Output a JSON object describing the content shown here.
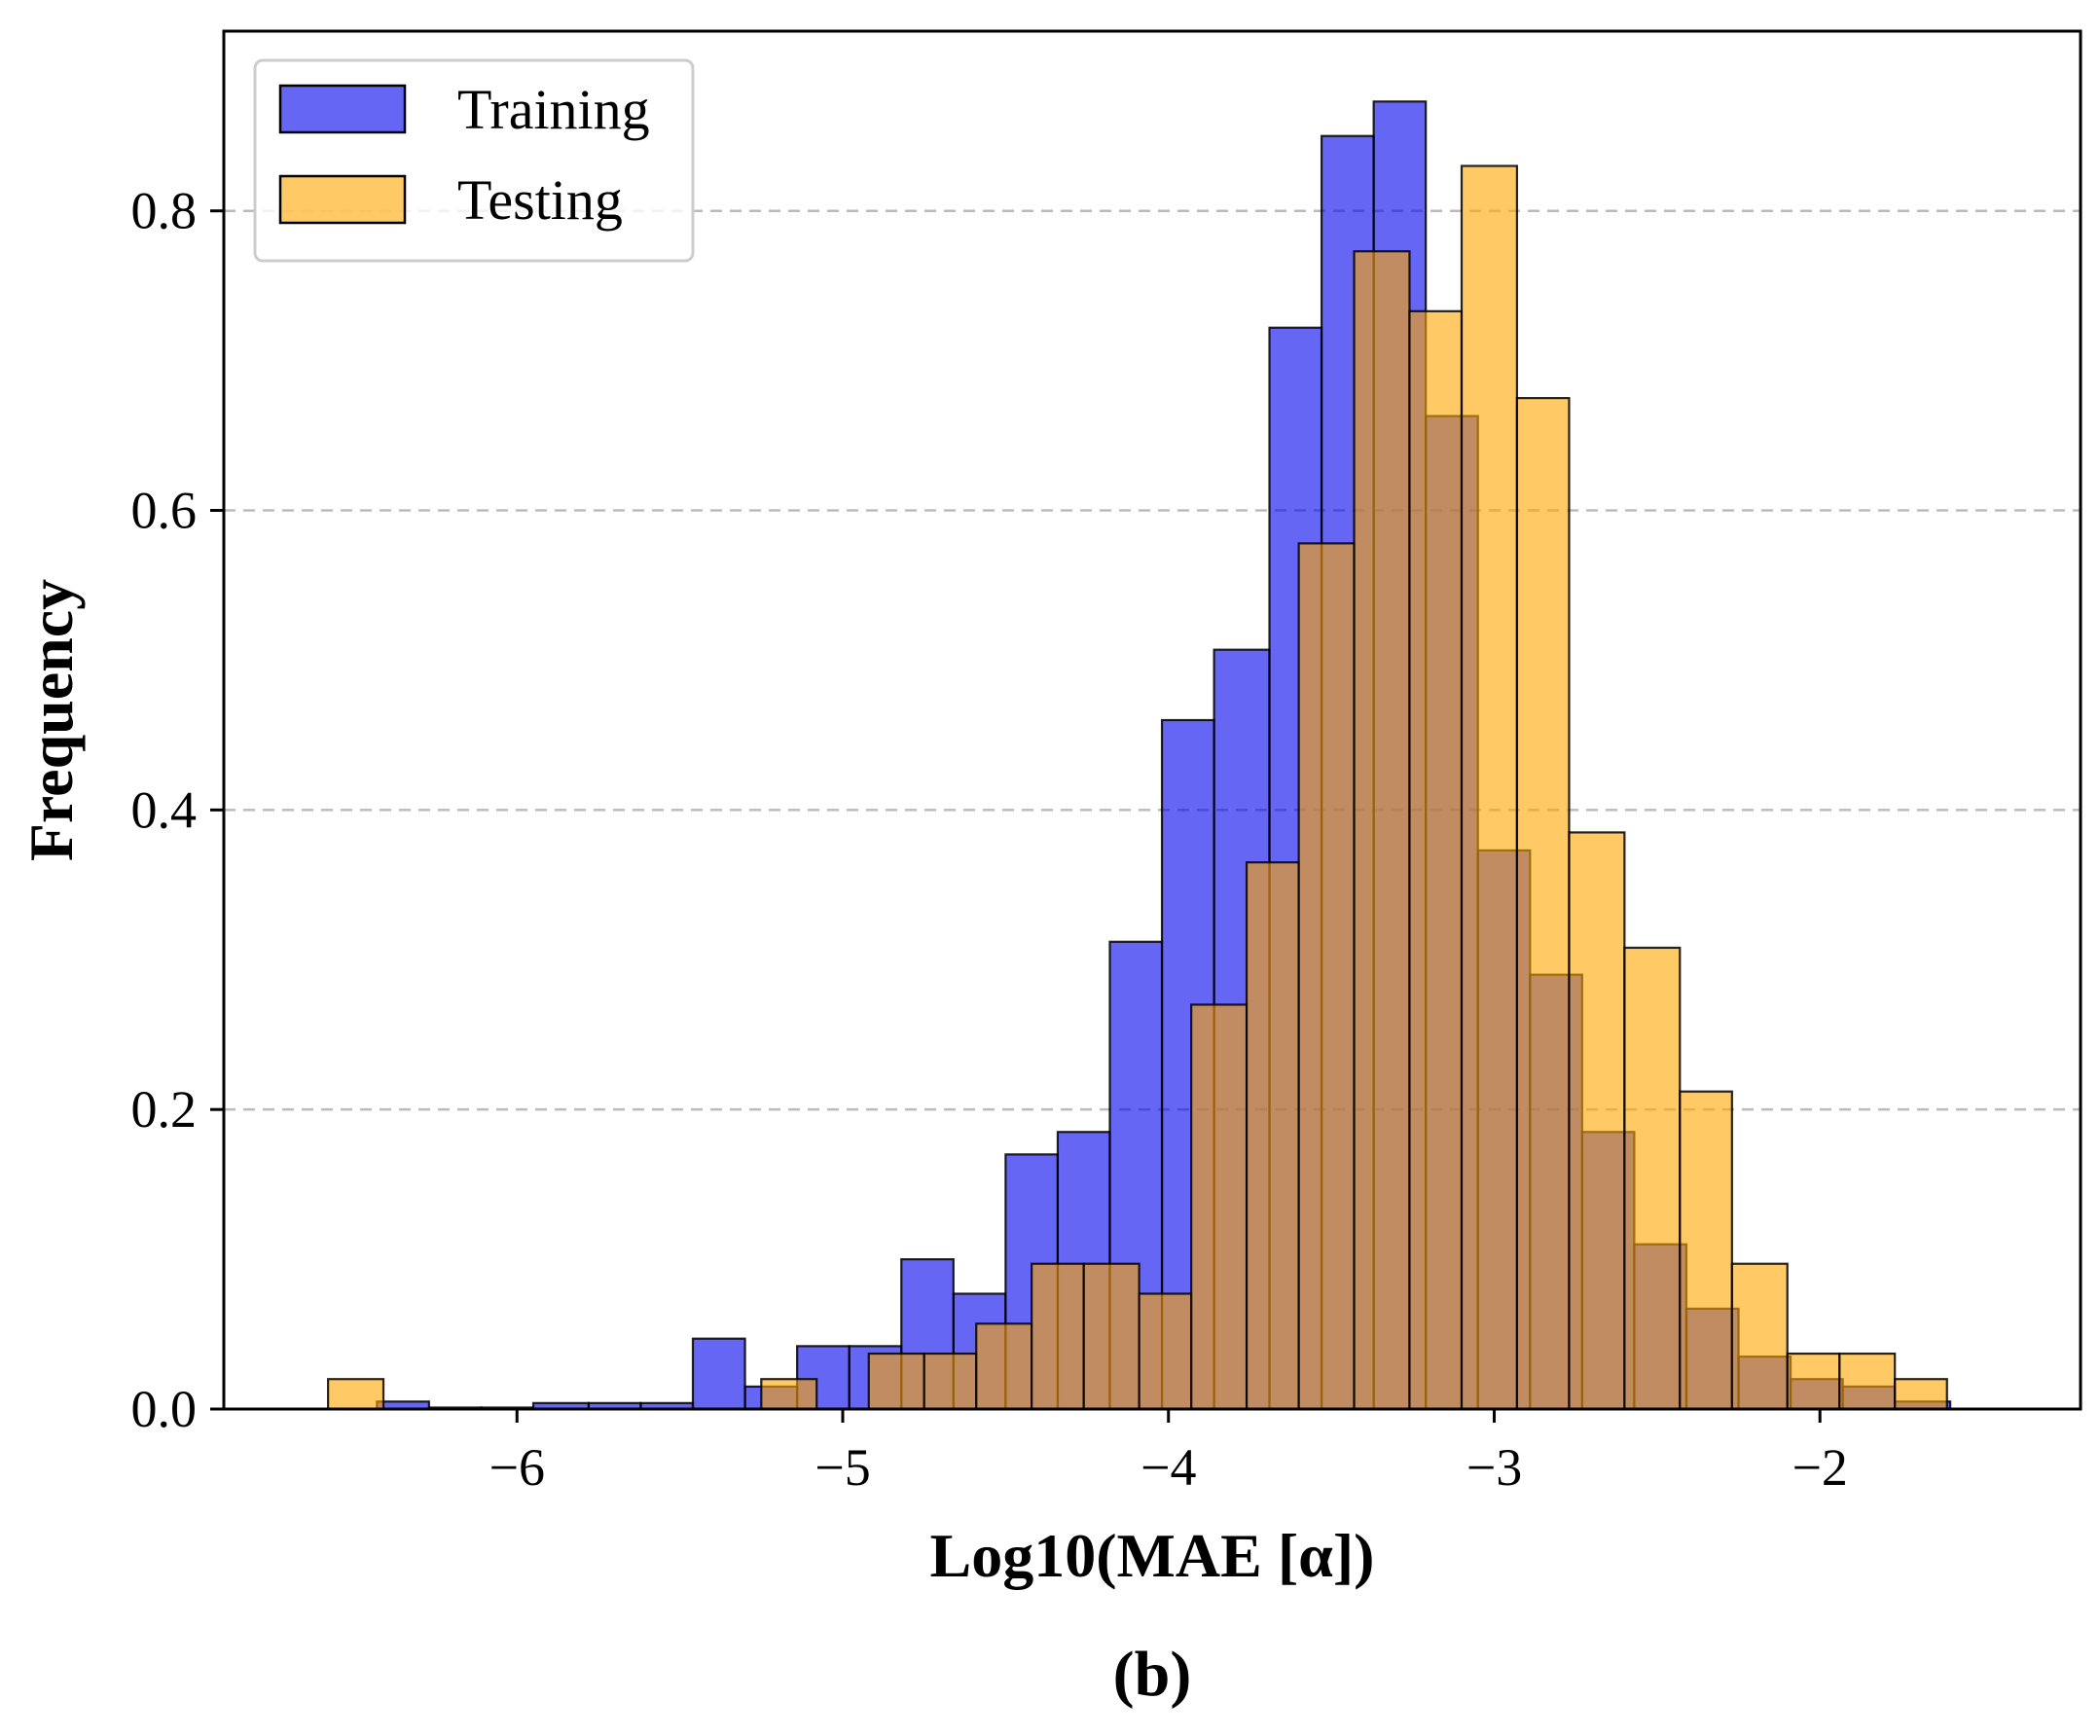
{
  "chart_data": {
    "type": "bar",
    "subtype": "overlapping-histogram",
    "xlabel": "Log10(MAE [α])",
    "ylabel": "Frequency",
    "panel_label": "(b)",
    "xlim": [
      -6.9,
      -1.2
    ],
    "ylim": [
      0,
      0.92
    ],
    "x_ticks": [
      -6,
      -5,
      -4,
      -3,
      -2
    ],
    "x_tick_labels": [
      "−6",
      "−5",
      "−4",
      "−3",
      "−2"
    ],
    "y_ticks": [
      0.0,
      0.2,
      0.4,
      0.6,
      0.8
    ],
    "y_tick_labels": [
      "0.0",
      "0.2",
      "0.4",
      "0.6",
      "0.8"
    ],
    "grid": "horizontal dashed",
    "legend_position": "top-left",
    "series": [
      {
        "name": "Training",
        "color": "#0000ee",
        "opacity": 0.6,
        "bin_width": 0.161,
        "bins": [
          {
            "x0": -6.43,
            "x1": -6.27,
            "value": 0.005
          },
          {
            "x0": -6.27,
            "x1": -6.11,
            "value": 0.001
          },
          {
            "x0": -6.11,
            "x1": -5.95,
            "value": 0.001
          },
          {
            "x0": -5.95,
            "x1": -5.78,
            "value": 0.004
          },
          {
            "x0": -5.78,
            "x1": -5.62,
            "value": 0.004
          },
          {
            "x0": -5.62,
            "x1": -5.46,
            "value": 0.004
          },
          {
            "x0": -5.46,
            "x1": -5.3,
            "value": 0.047
          },
          {
            "x0": -5.3,
            "x1": -5.14,
            "value": 0.015
          },
          {
            "x0": -5.14,
            "x1": -4.98,
            "value": 0.042
          },
          {
            "x0": -4.98,
            "x1": -4.82,
            "value": 0.042
          },
          {
            "x0": -4.82,
            "x1": -4.66,
            "value": 0.1
          },
          {
            "x0": -4.66,
            "x1": -4.5,
            "value": 0.077
          },
          {
            "x0": -4.5,
            "x1": -4.34,
            "value": 0.17
          },
          {
            "x0": -4.34,
            "x1": -4.18,
            "value": 0.185
          },
          {
            "x0": -4.18,
            "x1": -4.02,
            "value": 0.312
          },
          {
            "x0": -4.02,
            "x1": -3.86,
            "value": 0.46
          },
          {
            "x0": -3.86,
            "x1": -3.69,
            "value": 0.507
          },
          {
            "x0": -3.69,
            "x1": -3.53,
            "value": 0.722
          },
          {
            "x0": -3.53,
            "x1": -3.37,
            "value": 0.85
          },
          {
            "x0": -3.37,
            "x1": -3.21,
            "value": 0.873
          },
          {
            "x0": -3.21,
            "x1": -3.05,
            "value": 0.663
          },
          {
            "x0": -3.05,
            "x1": -2.89,
            "value": 0.373
          },
          {
            "x0": -2.89,
            "x1": -2.73,
            "value": 0.29
          },
          {
            "x0": -2.73,
            "x1": -2.57,
            "value": 0.185
          },
          {
            "x0": -2.57,
            "x1": -2.41,
            "value": 0.11
          },
          {
            "x0": -2.41,
            "x1": -2.25,
            "value": 0.067
          },
          {
            "x0": -2.25,
            "x1": -2.09,
            "value": 0.035
          },
          {
            "x0": -2.09,
            "x1": -1.93,
            "value": 0.02
          },
          {
            "x0": -1.93,
            "x1": -1.77,
            "value": 0.015
          },
          {
            "x0": -1.77,
            "x1": -1.6,
            "value": 0.005
          }
        ]
      },
      {
        "name": "Testing",
        "color": "#ffa500",
        "opacity": 0.6,
        "bin_width": 0.165,
        "bins": [
          {
            "x0": -6.58,
            "x1": -6.41,
            "value": 0.02
          },
          {
            "x0": -5.25,
            "x1": -5.08,
            "value": 0.02
          },
          {
            "x0": -4.92,
            "x1": -4.75,
            "value": 0.037
          },
          {
            "x0": -4.75,
            "x1": -4.59,
            "value": 0.037
          },
          {
            "x0": -4.59,
            "x1": -4.42,
            "value": 0.057
          },
          {
            "x0": -4.42,
            "x1": -4.26,
            "value": 0.097
          },
          {
            "x0": -4.26,
            "x1": -4.09,
            "value": 0.097
          },
          {
            "x0": -4.09,
            "x1": -3.93,
            "value": 0.077
          },
          {
            "x0": -3.93,
            "x1": -3.76,
            "value": 0.27
          },
          {
            "x0": -3.76,
            "x1": -3.6,
            "value": 0.365
          },
          {
            "x0": -3.6,
            "x1": -3.43,
            "value": 0.578
          },
          {
            "x0": -3.43,
            "x1": -3.26,
            "value": 0.773
          },
          {
            "x0": -3.26,
            "x1": -3.1,
            "value": 0.733
          },
          {
            "x0": -3.1,
            "x1": -2.93,
            "value": 0.83
          },
          {
            "x0": -2.93,
            "x1": -2.77,
            "value": 0.675
          },
          {
            "x0": -2.77,
            "x1": -2.6,
            "value": 0.385
          },
          {
            "x0": -2.6,
            "x1": -2.43,
            "value": 0.308
          },
          {
            "x0": -2.43,
            "x1": -2.27,
            "value": 0.212
          },
          {
            "x0": -2.27,
            "x1": -2.1,
            "value": 0.097
          },
          {
            "x0": -2.1,
            "x1": -1.94,
            "value": 0.037
          },
          {
            "x0": -1.94,
            "x1": -1.77,
            "value": 0.037
          },
          {
            "x0": -1.77,
            "x1": -1.61,
            "value": 0.02
          }
        ]
      }
    ]
  }
}
